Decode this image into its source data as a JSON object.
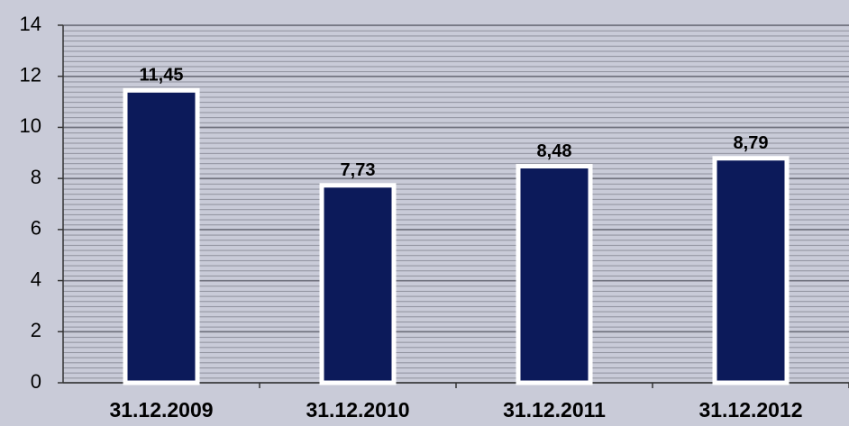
{
  "chart_data": {
    "type": "bar",
    "categories": [
      "31.12.2009",
      "31.12.2010",
      "31.12.2011",
      "31.12.2012"
    ],
    "values": [
      11.45,
      7.73,
      8.48,
      8.79
    ],
    "value_labels": [
      "11,45",
      "7,73",
      "8,48",
      "8,79"
    ],
    "color": "#0c1a5a",
    "ylim": [
      0,
      14
    ],
    "yticks": [
      0,
      2,
      4,
      6,
      8,
      10,
      12,
      14
    ],
    "grid": true
  }
}
